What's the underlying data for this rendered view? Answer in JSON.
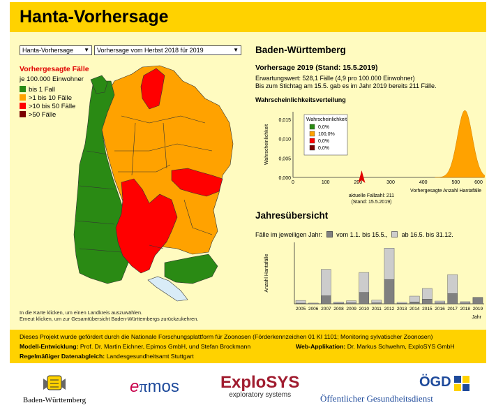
{
  "header": {
    "title": "Hanta-Vorhersage"
  },
  "controls": {
    "view_select": "Hanta-Vorhersage",
    "period_select": "Vorhersage vom Herbst 2018 für 2019"
  },
  "legend": {
    "title": "Vorhergesagte Fälle",
    "subtitle": "je 100.000 Einwohner",
    "items": [
      {
        "label": "bis 1 Fall",
        "color": "#2a8a14"
      },
      {
        "label": ">1 bis 10 Fälle",
        "color": "#ffa200"
      },
      {
        "label": ">10 bis 50 Fälle",
        "color": "#ff0000"
      },
      {
        "label": ">50 Fälle",
        "color": "#7a0000"
      }
    ]
  },
  "map": {
    "note_line1": "In die Karte klicken, um einen Landkreis auszuwählen.",
    "note_line2": "Erneut klicken, um zur Gesamtübersicht Baden-Württembergs zurückzukehren."
  },
  "detail": {
    "region": "Baden-Württemberg",
    "forecast_title": "Vorhersage 2019 (Stand: 15.5.2019)",
    "expected": "Erwartungswert: 528,1 Fälle (4,9 pro 100.000 Einwohner)",
    "count_to_date": "Bis zum Stichtag am 15.5. gab es im Jahr 2019 bereits 211 Fälle.",
    "distribution_title": "Wahrscheinlichkeitsverteilung",
    "annual_title": "Jahresübersicht",
    "annual_legend_prefix": "Fälle im jeweiligen Jahr:",
    "annual_legend_a": "vom 1.1. bis 15.5.,",
    "annual_legend_b": "ab 16.5. bis 31.12."
  },
  "chart_data": [
    {
      "type": "area",
      "title": "Wahrscheinlichkeitsverteilung",
      "xlabel": "Vorhergesagte Anzahl Hantafälle",
      "ylabel": "Wahrscheinlichkeit",
      "xlim": [
        0,
        600
      ],
      "ylim": [
        0,
        0.017
      ],
      "x_ticks": [
        "0",
        "100",
        "200",
        "300",
        "400",
        "500",
        "600"
      ],
      "y_ticks": [
        "0,000",
        "0,005",
        "0,010",
        "0,015"
      ],
      "curve": {
        "mean": 528,
        "sd": 23,
        "color": "#ffa200"
      },
      "legend_title": "Wahrscheinlichkeit",
      "legend": [
        {
          "label": "0,0%",
          "color": "#2a8a14"
        },
        {
          "label": "100,0%",
          "color": "#ffa200"
        },
        {
          "label": "0,0%",
          "color": "#ff0000"
        },
        {
          "label": "0,0%",
          "color": "#7a0000"
        }
      ],
      "marker": {
        "x": 211,
        "label1": "aktuelle Fallzahl: 211",
        "label2": "(Stand: 15.5.2019)"
      }
    },
    {
      "type": "bar",
      "title": "Jahresübersicht",
      "ylabel": "Anzahl Hantafälle",
      "xlabel": "Jahr",
      "ylim": [
        0,
        2000
      ],
      "categories": [
        "2005",
        "2006",
        "2007",
        "2008",
        "2009",
        "2010",
        "2011",
        "2012",
        "2013",
        "2014",
        "2015",
        "2016",
        "2017",
        "2018",
        "2019"
      ],
      "series": [
        {
          "name": "vom 1.1. bis 15.5.",
          "color": "#808080",
          "values": [
            20,
            5,
            260,
            20,
            30,
            370,
            30,
            790,
            10,
            60,
            150,
            30,
            330,
            30,
            211
          ]
        },
        {
          "name": "ab 16.5. bis 31.12.",
          "color": "#cccccc",
          "values": [
            90,
            20,
            860,
            40,
            70,
            650,
            90,
            1020,
            40,
            190,
            350,
            60,
            620,
            40,
            0
          ]
        }
      ]
    }
  ],
  "footer": {
    "line1": "Dieses Projekt wurde gefördert durch die Nationale Forschungsplattform für Zoonosen (Förderkennzeichen 01 KI 1101; Monitoring sylvatischer Zoonosen)",
    "model_label": "Modell-Entwicklung:",
    "model_value": "Prof. Dr. Martin Eichner, Epimos GmbH, und Stefan Brockmann",
    "webapp_label": "Web-Applikation:",
    "webapp_value": "Dr. Markus Schwehm, ExploSYS GmbH",
    "sync_label": "Regelmäßiger Datenabgleich:",
    "sync_value": "Landesgesundheitsamt Stuttgart"
  },
  "logos": {
    "bw": "Baden-Württemberg",
    "epimos": "mos",
    "explosys": "ExploSYS",
    "explosys_sub": "exploratory systems",
    "ogd": "ÖGD",
    "ogd_sub": "Öffentlicher Gesundheitsdienst"
  }
}
